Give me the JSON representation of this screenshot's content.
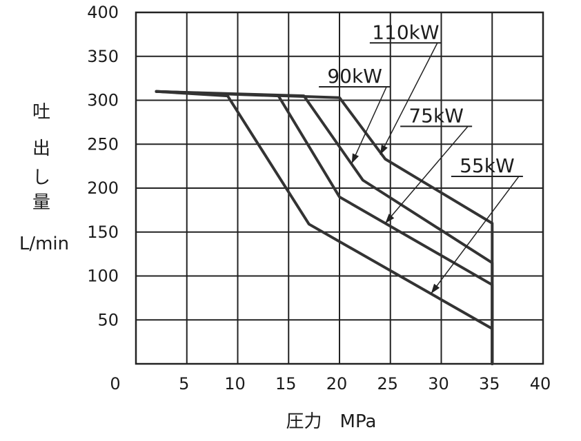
{
  "chart_data": {
    "type": "line",
    "xlabel": "圧力　MPa",
    "ylabel_lines": [
      "吐",
      "出",
      "し",
      "量"
    ],
    "ylabel_unit": "L/min",
    "xlim": [
      0,
      40
    ],
    "ylim": [
      0,
      400
    ],
    "x_ticks": [
      0,
      5,
      10,
      15,
      20,
      25,
      30,
      35,
      40
    ],
    "y_ticks": [
      50,
      100,
      150,
      200,
      250,
      300,
      350,
      400
    ],
    "grid": true,
    "series": [
      {
        "name": "110kW",
        "points": [
          [
            2,
            310
          ],
          [
            20,
            303
          ],
          [
            24.5,
            233
          ],
          [
            35,
            160
          ],
          [
            35,
            0
          ]
        ]
      },
      {
        "name": "90kW",
        "points": [
          [
            2,
            310
          ],
          [
            16.5,
            305
          ],
          [
            22.3,
            209
          ],
          [
            35,
            115
          ],
          [
            35,
            0
          ]
        ]
      },
      {
        "name": "75kW",
        "points": [
          [
            2,
            310
          ],
          [
            14,
            305
          ],
          [
            20,
            190
          ],
          [
            35,
            90
          ],
          [
            35,
            0
          ]
        ]
      },
      {
        "name": "55kW",
        "points": [
          [
            2,
            310
          ],
          [
            9,
            305
          ],
          [
            17,
            159
          ],
          [
            35,
            40
          ],
          [
            35,
            0
          ]
        ]
      }
    ],
    "annotations": [
      {
        "series": "110kW",
        "label_at": [
          26.5,
          370
        ],
        "arrow_to": [
          24,
          238
        ]
      },
      {
        "series": "90kW",
        "label_at": [
          21.5,
          320
        ],
        "arrow_to": [
          21.2,
          228
        ]
      },
      {
        "series": "75kW",
        "label_at": [
          29.5,
          275
        ],
        "arrow_to": [
          24.5,
          160
        ]
      },
      {
        "series": "55kW",
        "label_at": [
          34.5,
          218
        ],
        "arrow_to": [
          29,
          80
        ]
      }
    ]
  }
}
